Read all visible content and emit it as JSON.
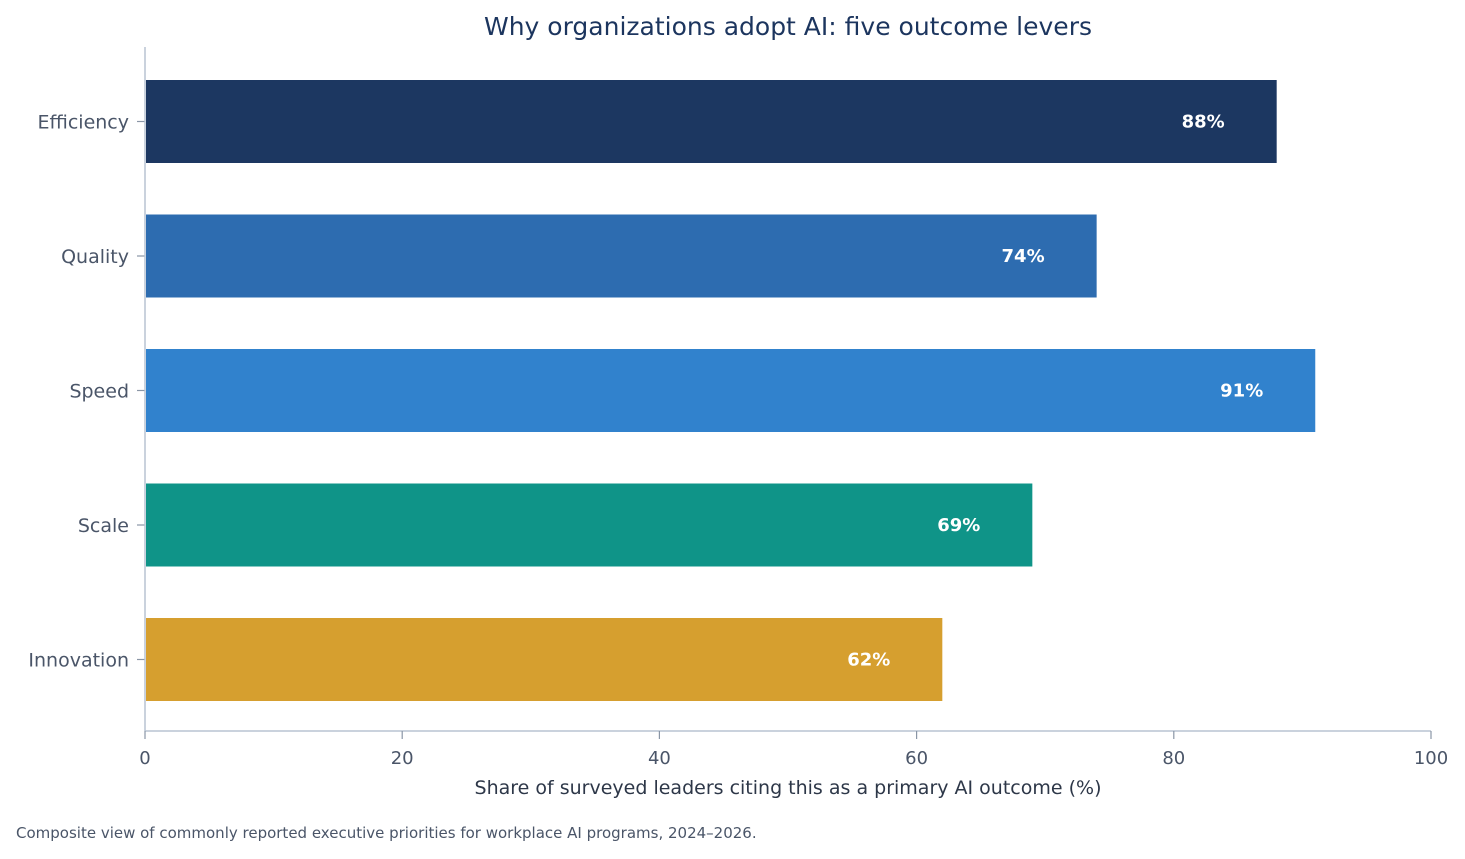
{
  "chart_data": {
    "type": "bar",
    "orientation": "horizontal",
    "title": "Why organizations adopt AI: five outcome levers",
    "xlabel": "Share of surveyed leaders citing this as a primary AI outcome (%)",
    "ylabel": "",
    "xlim": [
      0,
      100
    ],
    "xticks": [
      "0",
      "20",
      "40",
      "60",
      "80",
      "100"
    ],
    "categories": [
      "Efficiency",
      "Quality",
      "Speed",
      "Scale",
      "Innovation"
    ],
    "values": [
      88,
      74,
      91,
      69,
      62
    ],
    "data_labels": [
      "88%",
      "74%",
      "91%",
      "69%",
      "62%"
    ],
    "colors": [
      "#1c3761",
      "#2d6cb0",
      "#3182cd",
      "#0f9488",
      "#d69f2f"
    ],
    "grid": false,
    "legend": "none"
  },
  "caption": "Composite view of commonly reported executive priorities for workplace AI programs, 2024–2026."
}
